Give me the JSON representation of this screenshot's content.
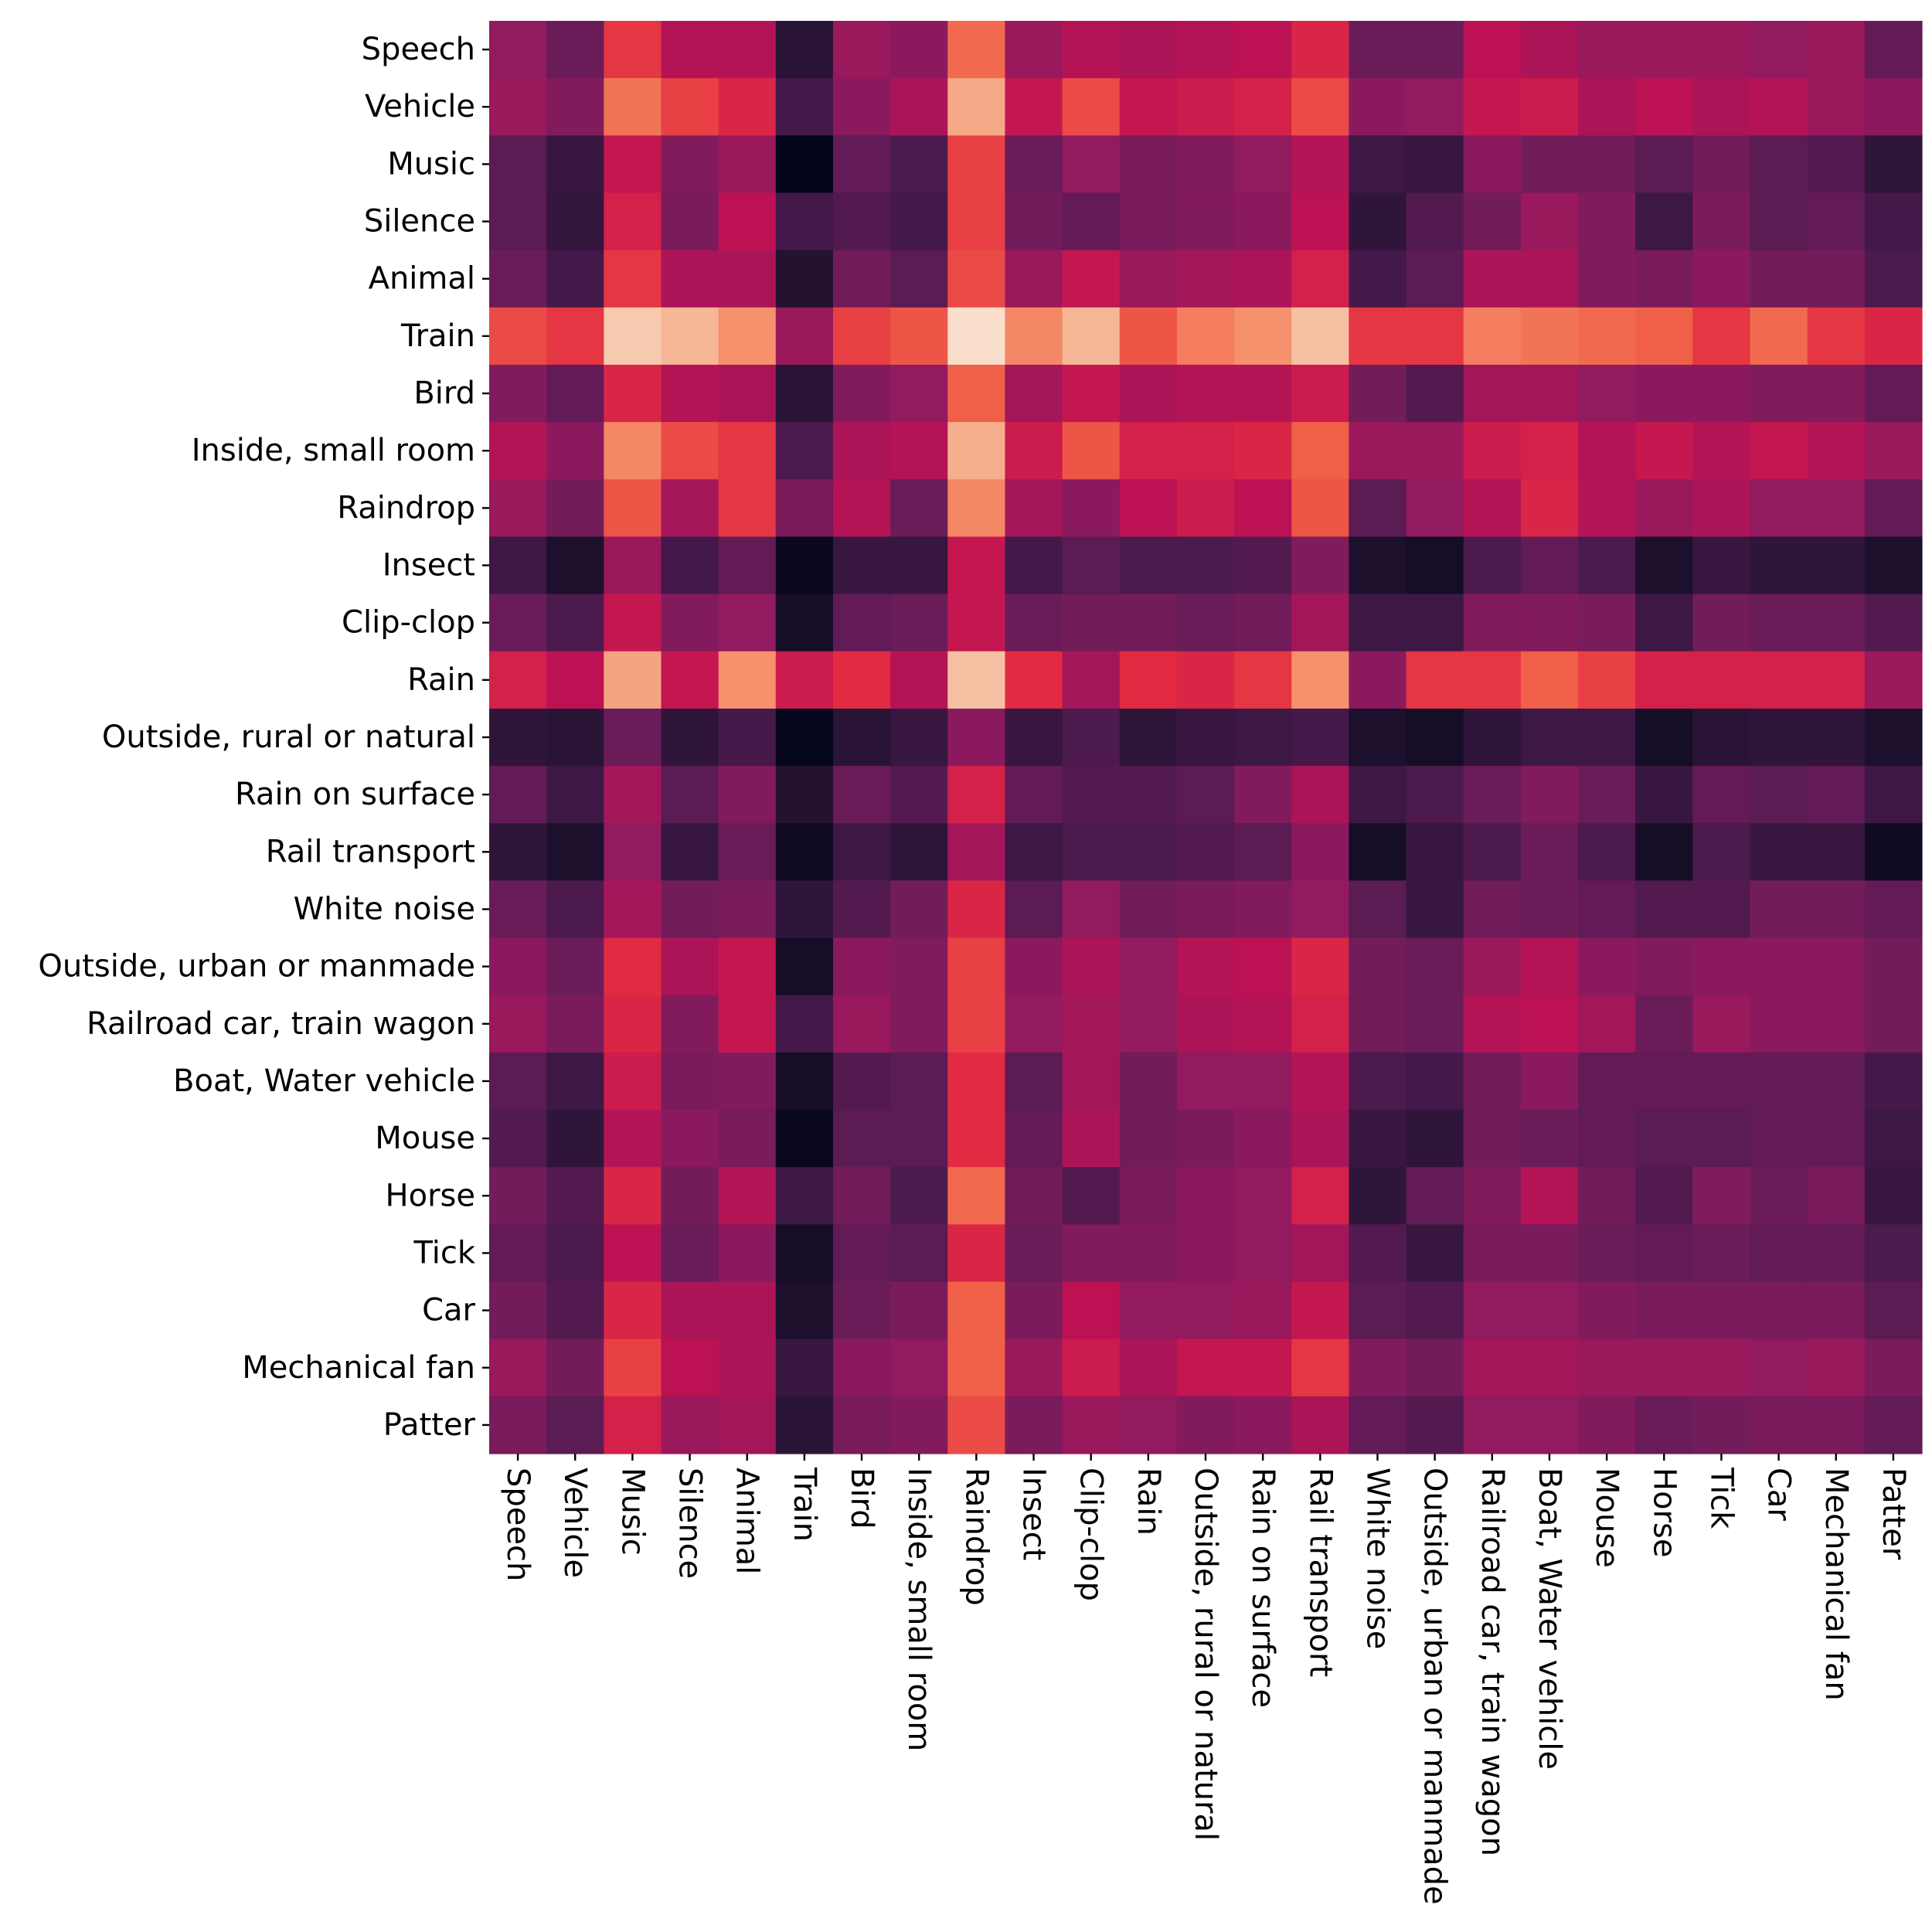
{
  "chart_data": {
    "type": "heatmap",
    "title": "",
    "xlabel": "",
    "ylabel": "",
    "colormap": "rocket",
    "colorbar": false,
    "value_range": [
      0,
      1
    ],
    "row_labels": [
      "Speech",
      "Vehicle",
      "Music",
      "Silence",
      "Animal",
      "Train",
      "Bird",
      "Inside, small room",
      "Raindrop",
      "Insect",
      "Clip-clop",
      "Rain",
      "Outside, rural or natural",
      "Rain on surface",
      "Rail transport",
      "White noise",
      "Outside, urban or manmade",
      "Railroad car, train wagon",
      "Boat, Water vehicle",
      "Mouse",
      "Horse",
      "Tick",
      "Car",
      "Mechanical fan",
      "Patter"
    ],
    "col_labels": [
      "Speech",
      "Vehicle",
      "Music",
      "Silence",
      "Animal",
      "Train",
      "Bird",
      "Inside, small room",
      "Raindrop",
      "Insect",
      "Clip-clop",
      "Rain",
      "Outside, rural or natural",
      "Rain on surface",
      "Rail transport",
      "White noise",
      "Outside, urban or manmade",
      "Railroad car, train wagon",
      "Boat, Water vehicle",
      "Mouse",
      "Horse",
      "Tick",
      "Car",
      "Mechanical fan",
      "Patter"
    ],
    "values": [
      [
        0.4,
        0.3,
        0.62,
        0.48,
        0.48,
        0.12,
        0.42,
        0.38,
        0.72,
        0.42,
        0.48,
        0.46,
        0.48,
        0.5,
        0.58,
        0.3,
        0.3,
        0.5,
        0.46,
        0.42,
        0.42,
        0.42,
        0.4,
        0.42,
        0.28
      ],
      [
        0.42,
        0.36,
        0.74,
        0.64,
        0.58,
        0.2,
        0.38,
        0.46,
        0.85,
        0.52,
        0.66,
        0.52,
        0.54,
        0.56,
        0.66,
        0.38,
        0.4,
        0.52,
        0.54,
        0.46,
        0.5,
        0.46,
        0.48,
        0.42,
        0.38
      ],
      [
        0.26,
        0.16,
        0.52,
        0.36,
        0.42,
        0.0,
        0.28,
        0.22,
        0.64,
        0.3,
        0.4,
        0.34,
        0.36,
        0.4,
        0.48,
        0.18,
        0.16,
        0.38,
        0.32,
        0.32,
        0.26,
        0.32,
        0.26,
        0.24,
        0.14
      ],
      [
        0.26,
        0.15,
        0.56,
        0.34,
        0.5,
        0.2,
        0.24,
        0.2,
        0.64,
        0.32,
        0.28,
        0.34,
        0.36,
        0.38,
        0.5,
        0.14,
        0.24,
        0.32,
        0.42,
        0.36,
        0.18,
        0.34,
        0.26,
        0.28,
        0.2
      ],
      [
        0.3,
        0.2,
        0.62,
        0.46,
        0.46,
        0.1,
        0.32,
        0.26,
        0.66,
        0.42,
        0.52,
        0.42,
        0.44,
        0.46,
        0.56,
        0.2,
        0.26,
        0.46,
        0.46,
        0.36,
        0.34,
        0.38,
        0.32,
        0.32,
        0.22
      ],
      [
        0.66,
        0.62,
        0.92,
        0.88,
        0.8,
        0.42,
        0.64,
        0.68,
        0.97,
        0.78,
        0.88,
        0.68,
        0.76,
        0.8,
        0.9,
        0.62,
        0.62,
        0.76,
        0.74,
        0.72,
        0.7,
        0.62,
        0.72,
        0.62,
        0.58
      ],
      [
        0.36,
        0.28,
        0.58,
        0.48,
        0.46,
        0.12,
        0.36,
        0.4,
        0.7,
        0.44,
        0.52,
        0.46,
        0.48,
        0.48,
        0.54,
        0.32,
        0.24,
        0.44,
        0.44,
        0.4,
        0.38,
        0.38,
        0.36,
        0.36,
        0.28
      ],
      [
        0.48,
        0.38,
        0.78,
        0.66,
        0.62,
        0.22,
        0.46,
        0.48,
        0.86,
        0.54,
        0.68,
        0.56,
        0.56,
        0.58,
        0.7,
        0.42,
        0.42,
        0.54,
        0.56,
        0.48,
        0.52,
        0.48,
        0.52,
        0.48,
        0.42
      ],
      [
        0.42,
        0.32,
        0.68,
        0.44,
        0.62,
        0.34,
        0.48,
        0.3,
        0.78,
        0.44,
        0.38,
        0.5,
        0.54,
        0.5,
        0.68,
        0.26,
        0.4,
        0.48,
        0.58,
        0.48,
        0.42,
        0.46,
        0.4,
        0.4,
        0.28
      ],
      [
        0.18,
        0.08,
        0.42,
        0.2,
        0.28,
        0.02,
        0.16,
        0.16,
        0.52,
        0.2,
        0.26,
        0.22,
        0.22,
        0.24,
        0.36,
        0.08,
        0.06,
        0.22,
        0.28,
        0.22,
        0.08,
        0.16,
        0.14,
        0.14,
        0.08
      ],
      [
        0.3,
        0.22,
        0.52,
        0.36,
        0.4,
        0.06,
        0.28,
        0.3,
        0.52,
        0.3,
        0.32,
        0.32,
        0.3,
        0.32,
        0.44,
        0.18,
        0.18,
        0.36,
        0.36,
        0.34,
        0.18,
        0.32,
        0.3,
        0.3,
        0.24
      ],
      [
        0.56,
        0.5,
        0.84,
        0.52,
        0.8,
        0.54,
        0.6,
        0.48,
        0.9,
        0.6,
        0.44,
        0.6,
        0.58,
        0.62,
        0.8,
        0.38,
        0.62,
        0.62,
        0.7,
        0.64,
        0.56,
        0.56,
        0.56,
        0.56,
        0.42
      ],
      [
        0.14,
        0.12,
        0.3,
        0.14,
        0.2,
        0.01,
        0.12,
        0.16,
        0.38,
        0.16,
        0.22,
        0.14,
        0.16,
        0.18,
        0.2,
        0.08,
        0.06,
        0.14,
        0.18,
        0.18,
        0.06,
        0.12,
        0.14,
        0.14,
        0.08
      ],
      [
        0.28,
        0.18,
        0.44,
        0.26,
        0.36,
        0.1,
        0.3,
        0.24,
        0.56,
        0.28,
        0.24,
        0.24,
        0.26,
        0.36,
        0.46,
        0.18,
        0.22,
        0.3,
        0.36,
        0.3,
        0.16,
        0.28,
        0.26,
        0.28,
        0.18
      ],
      [
        0.14,
        0.08,
        0.4,
        0.16,
        0.3,
        0.04,
        0.18,
        0.14,
        0.44,
        0.18,
        0.22,
        0.22,
        0.24,
        0.26,
        0.38,
        0.06,
        0.16,
        0.22,
        0.3,
        0.22,
        0.06,
        0.22,
        0.16,
        0.16,
        0.04
      ],
      [
        0.3,
        0.22,
        0.44,
        0.32,
        0.34,
        0.14,
        0.24,
        0.32,
        0.58,
        0.26,
        0.4,
        0.32,
        0.34,
        0.36,
        0.4,
        0.26,
        0.16,
        0.32,
        0.3,
        0.28,
        0.24,
        0.24,
        0.32,
        0.32,
        0.28
      ],
      [
        0.38,
        0.3,
        0.6,
        0.46,
        0.52,
        0.06,
        0.38,
        0.36,
        0.64,
        0.38,
        0.46,
        0.4,
        0.48,
        0.5,
        0.58,
        0.32,
        0.3,
        0.42,
        0.48,
        0.38,
        0.36,
        0.38,
        0.38,
        0.38,
        0.32
      ],
      [
        0.42,
        0.34,
        0.58,
        0.36,
        0.52,
        0.2,
        0.42,
        0.36,
        0.64,
        0.4,
        0.44,
        0.4,
        0.46,
        0.48,
        0.56,
        0.32,
        0.3,
        0.48,
        0.5,
        0.44,
        0.3,
        0.42,
        0.38,
        0.38,
        0.32
      ],
      [
        0.26,
        0.18,
        0.54,
        0.34,
        0.36,
        0.06,
        0.24,
        0.26,
        0.6,
        0.26,
        0.44,
        0.32,
        0.4,
        0.4,
        0.48,
        0.22,
        0.2,
        0.32,
        0.38,
        0.28,
        0.28,
        0.28,
        0.28,
        0.28,
        0.2
      ],
      [
        0.24,
        0.14,
        0.48,
        0.38,
        0.34,
        0.02,
        0.26,
        0.26,
        0.6,
        0.28,
        0.46,
        0.32,
        0.34,
        0.38,
        0.46,
        0.16,
        0.14,
        0.32,
        0.3,
        0.28,
        0.26,
        0.26,
        0.28,
        0.28,
        0.18
      ],
      [
        0.32,
        0.24,
        0.58,
        0.32,
        0.48,
        0.18,
        0.32,
        0.22,
        0.72,
        0.32,
        0.24,
        0.34,
        0.38,
        0.4,
        0.56,
        0.14,
        0.28,
        0.36,
        0.48,
        0.32,
        0.24,
        0.36,
        0.3,
        0.34,
        0.16
      ],
      [
        0.28,
        0.22,
        0.5,
        0.3,
        0.38,
        0.06,
        0.28,
        0.26,
        0.58,
        0.3,
        0.36,
        0.36,
        0.38,
        0.4,
        0.44,
        0.24,
        0.16,
        0.34,
        0.34,
        0.3,
        0.28,
        0.3,
        0.28,
        0.28,
        0.22
      ],
      [
        0.32,
        0.24,
        0.58,
        0.46,
        0.46,
        0.08,
        0.3,
        0.34,
        0.7,
        0.34,
        0.5,
        0.4,
        0.4,
        0.42,
        0.52,
        0.26,
        0.24,
        0.4,
        0.4,
        0.36,
        0.34,
        0.34,
        0.34,
        0.34,
        0.26
      ],
      [
        0.42,
        0.32,
        0.64,
        0.5,
        0.46,
        0.16,
        0.38,
        0.4,
        0.7,
        0.42,
        0.54,
        0.46,
        0.52,
        0.52,
        0.62,
        0.36,
        0.32,
        0.44,
        0.44,
        0.42,
        0.42,
        0.42,
        0.4,
        0.42,
        0.34
      ],
      [
        0.34,
        0.26,
        0.56,
        0.42,
        0.44,
        0.12,
        0.34,
        0.36,
        0.66,
        0.34,
        0.42,
        0.4,
        0.36,
        0.38,
        0.46,
        0.28,
        0.24,
        0.4,
        0.4,
        0.36,
        0.3,
        0.32,
        0.34,
        0.34,
        0.28
      ]
    ]
  }
}
